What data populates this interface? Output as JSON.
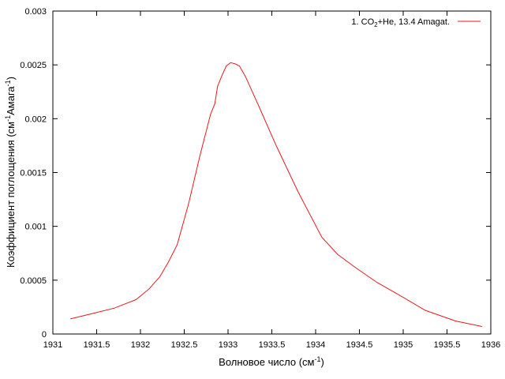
{
  "chart_data": {
    "type": "line",
    "xlabel": {
      "text": "Волновое число (см",
      "sup": "-1",
      "tail": ")"
    },
    "ylabel": {
      "text": "Коэффициент поглощения (см",
      "sup": "-1",
      "mid": "Амага",
      "sup2": "-1",
      "tail": ")"
    },
    "xlim": [
      1931,
      1936
    ],
    "ylim": [
      0,
      0.003
    ],
    "x_ticks": [
      1931,
      1931.5,
      1932,
      1932.5,
      1933,
      1933.5,
      1934,
      1934.5,
      1935,
      1935.5,
      1936
    ],
    "x_tick_labels": [
      "1931",
      "1931.5",
      "1932",
      "1932.5",
      "1933",
      "1933.5",
      "1934",
      "1934.5",
      "1935",
      "1935.5",
      "1936"
    ],
    "y_ticks": [
      0,
      0.0005,
      0.001,
      0.0015,
      0.002,
      0.0025,
      0.003
    ],
    "y_tick_labels": [
      "0",
      "0.0005",
      "0.001",
      "0.0015",
      "0.002",
      "0.0025",
      "0.003"
    ],
    "grid": false,
    "legend_position": "top-right",
    "series": [
      {
        "name": {
          "pre": "1. CO",
          "sub": "2",
          "post": "+He, 13.4 Amagat."
        },
        "color": "#e8191c",
        "x": [
          1931.2,
          1931.45,
          1931.7,
          1931.95,
          1932.1,
          1932.22,
          1932.32,
          1932.42,
          1932.55,
          1932.68,
          1932.8,
          1932.85,
          1932.88,
          1932.93,
          1932.98,
          1933.03,
          1933.08,
          1933.13,
          1933.2,
          1933.35,
          1933.55,
          1933.8,
          1934.07,
          1934.25,
          1934.45,
          1934.7,
          1935.0,
          1935.25,
          1935.6,
          1935.9
        ],
        "y": [
          0.00014,
          0.00019,
          0.00024,
          0.00032,
          0.00042,
          0.00053,
          0.00067,
          0.00083,
          0.00121,
          0.00166,
          0.00204,
          0.00214,
          0.0023,
          0.0024,
          0.00249,
          0.00252,
          0.00251,
          0.00249,
          0.00239,
          0.00212,
          0.00175,
          0.00132,
          0.0009,
          0.00074,
          0.00062,
          0.00048,
          0.00034,
          0.00022,
          0.00012,
          7e-05
        ]
      }
    ]
  }
}
